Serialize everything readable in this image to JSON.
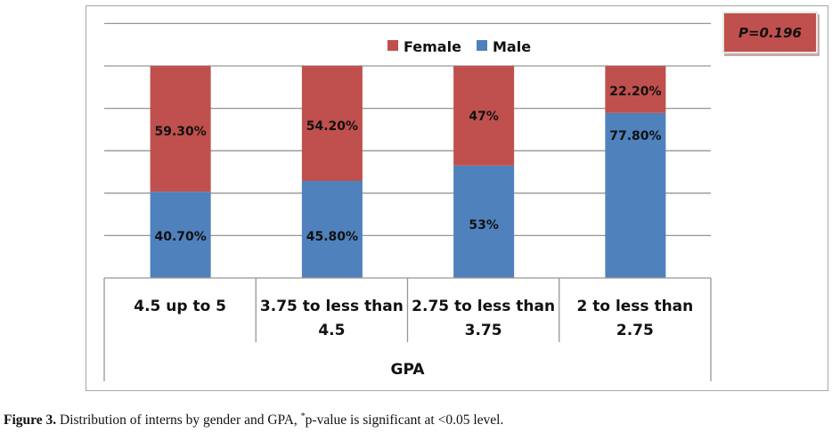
{
  "chart_data": {
    "type": "bar",
    "stacked": true,
    "title": "",
    "xlabel": "GPA",
    "ylabel": "",
    "ylim": [
      0,
      120
    ],
    "grid": true,
    "legend_position": "top-center",
    "categories": [
      [
        "4.5 up to 5"
      ],
      [
        "3.75 to less than",
        "4.5"
      ],
      [
        "2.75 to less than",
        "3.75"
      ],
      [
        "2 to less than",
        "2.75"
      ]
    ],
    "series": [
      {
        "name": "Male",
        "color": "#4f81bd",
        "values": [
          40.7,
          45.8,
          53,
          77.8
        ],
        "labels": [
          "40.70%",
          "45.80%",
          "53%",
          "77.80%"
        ]
      },
      {
        "name": "Female",
        "color": "#c0504d",
        "values": [
          59.3,
          54.2,
          47,
          22.2
        ],
        "labels": [
          "59.30%",
          "54.20%",
          "47%",
          "22.20%"
        ]
      }
    ],
    "legend": [
      "Female",
      "Male"
    ],
    "annotation": "P=0.196"
  },
  "caption": {
    "label": "Figure 3.",
    "text_before": " Distribution of interns by gender and GPA, ",
    "sup": "*",
    "text_after": "p-value is significant at <0.05 level."
  }
}
